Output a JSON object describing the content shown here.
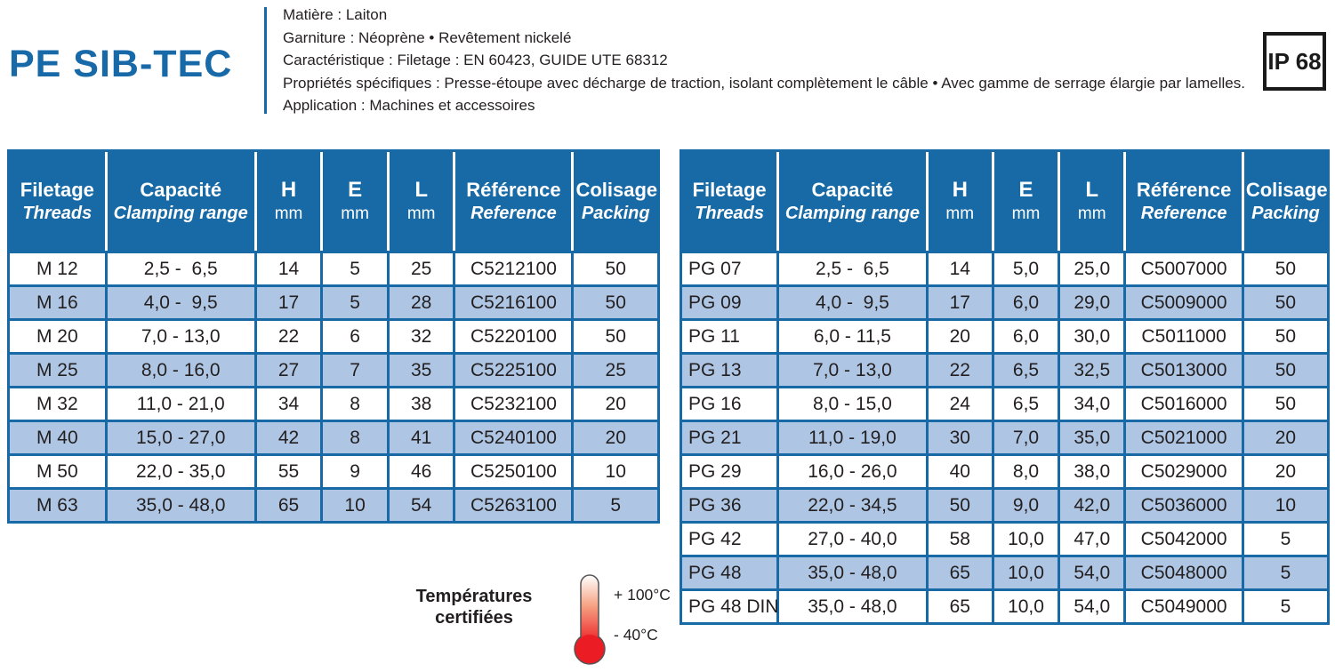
{
  "header": {
    "title": "PE SIB-TEC",
    "ip_rating": "IP 68",
    "details": [
      "Matière : Laiton",
      "Garniture : Néoprène • Revêtement nickelé",
      "Caractéristique : Filetage : EN 60423, GUIDE UTE 68312",
      "Propriétés spécifiques : Presse-étoupe avec décharge de traction, isolant complètement le câble • Avec gamme de serrage élargie par lamelles.",
      "Application : Machines et accessoires"
    ]
  },
  "table_header": {
    "filetage_fr": "Filetage",
    "filetage_en": "Threads",
    "capacite_fr": "Capacité",
    "capacite_en": "Clamping range",
    "h": "H",
    "e": "E",
    "l": "L",
    "mm": "mm",
    "reference_fr": "Référence",
    "reference_en": "Reference",
    "colisage_fr": "Colisage",
    "colisage_en": "Packing"
  },
  "left_table": {
    "rows": [
      [
        "M 12",
        "2,5 -  6,5",
        "14",
        "5",
        "25",
        "C5212100",
        "50"
      ],
      [
        "M 16",
        "4,0 -  9,5",
        "17",
        "5",
        "28",
        "C5216100",
        "50"
      ],
      [
        "M 20",
        "7,0 - 13,0",
        "22",
        "6",
        "32",
        "C5220100",
        "50"
      ],
      [
        "M 25",
        "8,0 - 16,0",
        "27",
        "7",
        "35",
        "C5225100",
        "25"
      ],
      [
        "M 32",
        "11,0 - 21,0",
        "34",
        "8",
        "38",
        "C5232100",
        "20"
      ],
      [
        "M 40",
        "15,0 - 27,0",
        "42",
        "8",
        "41",
        "C5240100",
        "20"
      ],
      [
        "M 50",
        "22,0 - 35,0",
        "55",
        "9",
        "46",
        "C5250100",
        "10"
      ],
      [
        "M 63",
        "35,0 - 48,0",
        "65",
        "10",
        "54",
        "C5263100",
        "5"
      ]
    ]
  },
  "right_table": {
    "rows": [
      [
        "PG 07",
        "2,5 -  6,5",
        "14",
        "5,0",
        "25,0",
        "C5007000",
        "50"
      ],
      [
        "PG 09",
        "4,0 -  9,5",
        "17",
        "6,0",
        "29,0",
        "C5009000",
        "50"
      ],
      [
        "PG 11",
        "6,0 - 11,5",
        "20",
        "6,0",
        "30,0",
        "C5011000",
        "50"
      ],
      [
        "PG 13",
        "7,0 - 13,0",
        "22",
        "6,5",
        "32,5",
        "C5013000",
        "50"
      ],
      [
        "PG 16",
        "8,0 - 15,0",
        "24",
        "6,5",
        "34,0",
        "C5016000",
        "50"
      ],
      [
        "PG 21",
        "11,0 - 19,0",
        "30",
        "7,0",
        "35,0",
        "C5021000",
        "20"
      ],
      [
        "PG 29",
        "16,0 - 26,0",
        "40",
        "8,0",
        "38,0",
        "C5029000",
        "20"
      ],
      [
        "PG 36",
        "22,0 - 34,5",
        "50",
        "9,0",
        "42,0",
        "C5036000",
        "10"
      ],
      [
        "PG 42",
        "27,0 - 40,0",
        "58",
        "10,0",
        "47,0",
        "C5042000",
        "5"
      ],
      [
        "PG 48",
        "35,0 - 48,0",
        "65",
        "10,0",
        "54,0",
        "C5048000",
        "5"
      ],
      [
        "PG 48 DIN",
        "35,0 - 48,0",
        "65",
        "10,0",
        "54,0",
        "C5049000",
        "5"
      ]
    ]
  },
  "temperature": {
    "label_line1": "Températures",
    "label_line2": "certifiées",
    "max": "+ 100°C",
    "min": "- 40°C"
  },
  "colors": {
    "header_blue": "#176AA6",
    "row_blue": "#AEC6E3",
    "title_blue": "#1769A8",
    "text_dark": "#231F20",
    "thermo_red": "#EC1C24"
  }
}
